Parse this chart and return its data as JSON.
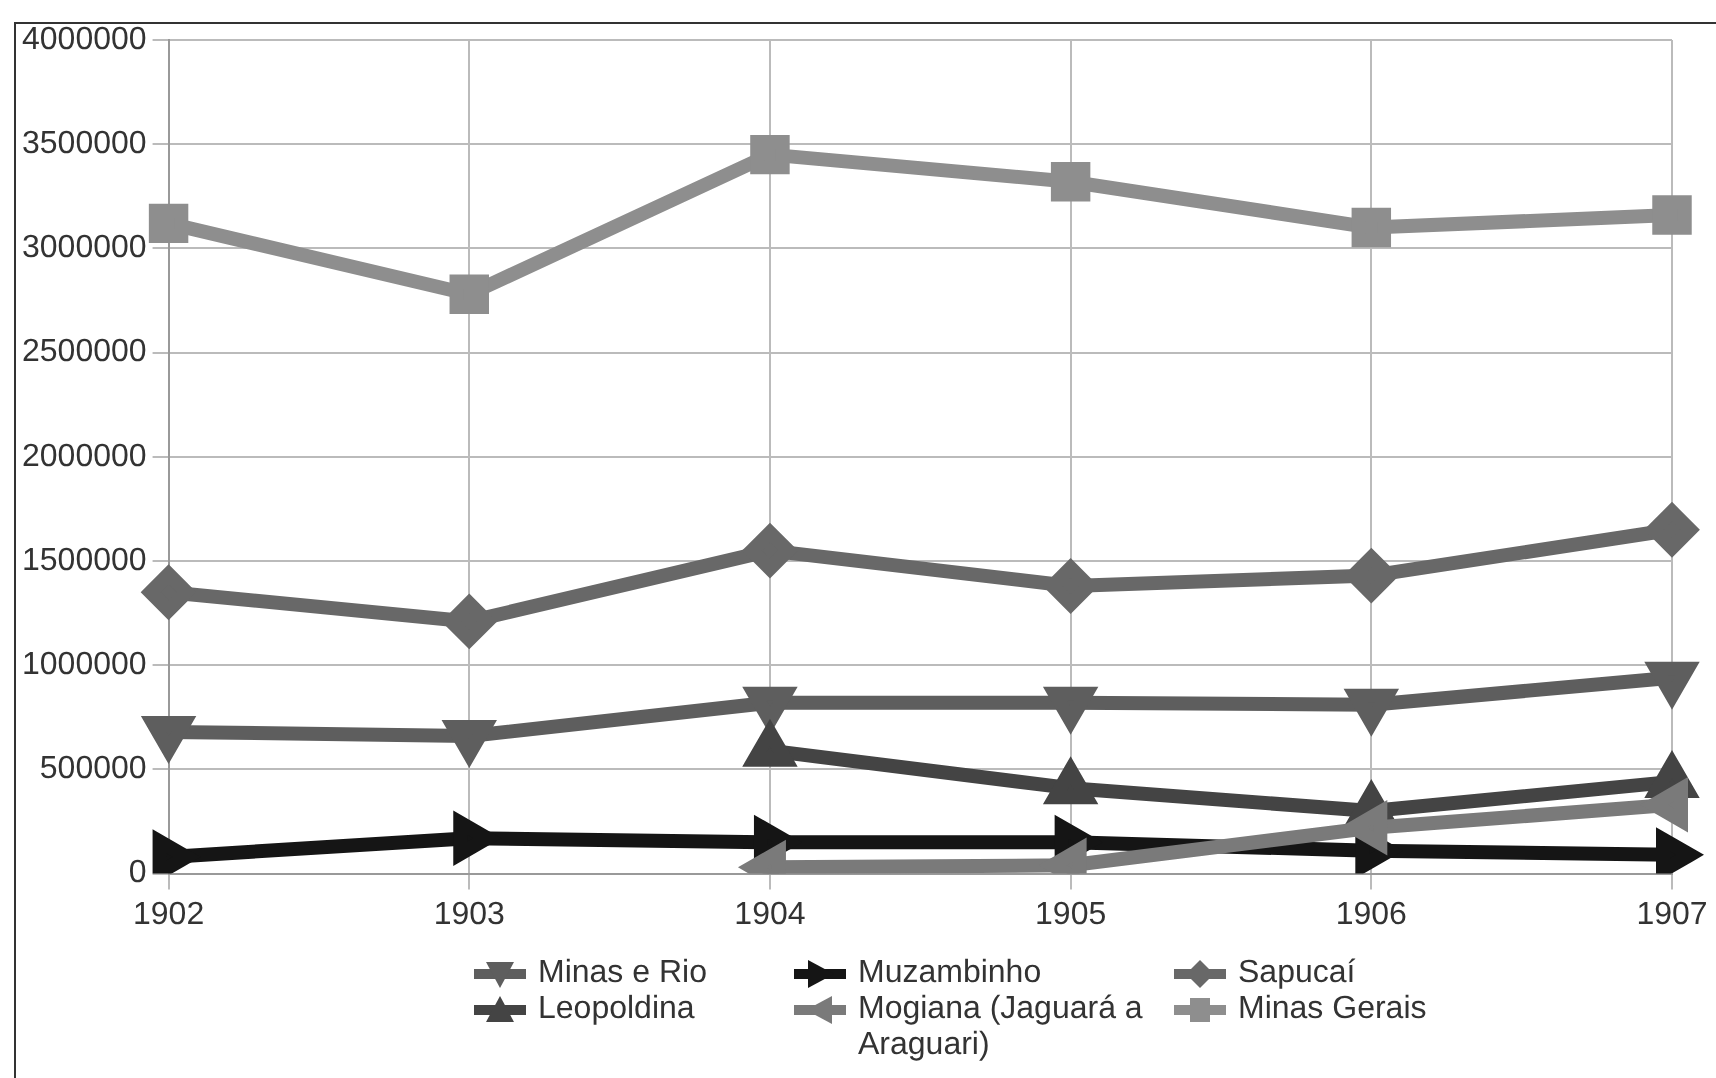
{
  "chart_data": {
    "type": "line",
    "categories": [
      "1902",
      "1903",
      "1904",
      "1905",
      "1906",
      "1907"
    ],
    "ylim": [
      0,
      4000000
    ],
    "yticks": [
      0,
      500000,
      1000000,
      1500000,
      2000000,
      2500000,
      3000000,
      3500000,
      4000000
    ],
    "grid": true,
    "legend": "bottom",
    "line_style": "solid",
    "series": [
      {
        "name": "Minas e Rio",
        "color": "#5e5e5e",
        "marker": "triangle-down",
        "values": [
          680000,
          660000,
          820000,
          820000,
          810000,
          940000
        ]
      },
      {
        "name": "Muzambinho",
        "color": "#151515",
        "marker": "triangle-right",
        "values": [
          80000,
          170000,
          150000,
          150000,
          110000,
          90000
        ]
      },
      {
        "name": "Sapucaí",
        "color": "#686868",
        "marker": "diamond",
        "values": [
          1350000,
          1210000,
          1550000,
          1380000,
          1430000,
          1650000
        ]
      },
      {
        "name": "Leopoldina",
        "color": "#444444",
        "marker": "triangle",
        "values": [
          null,
          null,
          590000,
          410000,
          300000,
          440000
        ]
      },
      {
        "name": "Mogiana (Jaguará a Araguari)",
        "color": "#7a7a7a",
        "marker": "triangle-left",
        "values": [
          null,
          null,
          30000,
          40000,
          220000,
          330000
        ]
      },
      {
        "name": "Minas Gerais",
        "color": "#8e8e8e",
        "marker": "square",
        "values": [
          3120000,
          2780000,
          3450000,
          3320000,
          3100000,
          3160000
        ]
      }
    ]
  }
}
